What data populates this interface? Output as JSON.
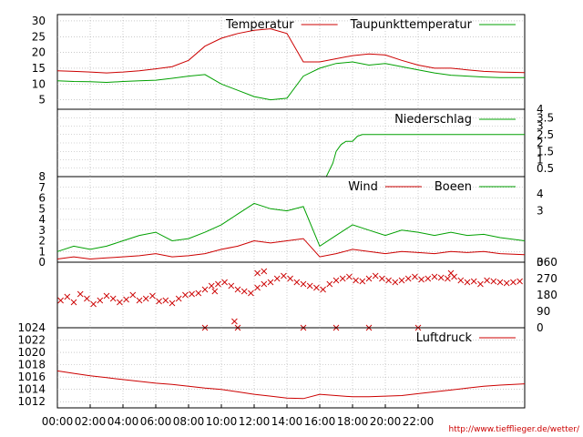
{
  "footer": {
    "url": "http://www.tiefflieger.de/wetter/"
  },
  "time_axis": {
    "ticks": [
      {
        "hour": 0,
        "label": "00:00"
      },
      {
        "hour": 2,
        "label": "02:00"
      },
      {
        "hour": 4,
        "label": "04:00"
      },
      {
        "hour": 6,
        "label": "06:00"
      },
      {
        "hour": 8,
        "label": "08:00"
      },
      {
        "hour": 10,
        "label": "10:00"
      },
      {
        "hour": 12,
        "label": "12:00"
      },
      {
        "hour": 14,
        "label": "14:00"
      },
      {
        "hour": 16,
        "label": "16:00"
      },
      {
        "hour": 18,
        "label": "18:00"
      },
      {
        "hour": 20,
        "label": "20:00"
      },
      {
        "hour": 22,
        "label": "22:00"
      }
    ],
    "range_hours": [
      0,
      28.5
    ]
  },
  "colors": {
    "red": "#cc0000",
    "green": "#00a000",
    "grid": "#aaaaaa"
  },
  "chart_data": [
    {
      "type": "line",
      "xlim": [
        0,
        28.5
      ],
      "ylim": [
        2,
        32
      ],
      "yticks": [
        5,
        10,
        15,
        20,
        25,
        30
      ],
      "legend": [
        {
          "name": "Temperatur",
          "color": "#cc0000"
        },
        {
          "name": "Taupunkttemperatur",
          "color": "#00a000"
        }
      ],
      "series": [
        {
          "name": "Temperatur",
          "color": "#cc0000",
          "x": [
            0,
            1,
            2,
            3,
            4,
            5,
            6,
            7,
            8,
            9,
            10,
            11,
            12,
            13,
            14,
            15,
            16,
            17,
            18,
            19,
            20,
            21,
            22,
            23,
            24,
            25,
            26,
            27,
            28.5
          ],
          "y": [
            14.2,
            14.0,
            13.8,
            13.5,
            13.8,
            14.2,
            14.8,
            15.5,
            17.5,
            22.0,
            24.5,
            26.0,
            27.0,
            27.5,
            26.0,
            17.0,
            17.0,
            18.0,
            19.0,
            19.5,
            19.2,
            17.5,
            16.0,
            15.0,
            15.0,
            14.5,
            14.0,
            13.8,
            13.6
          ]
        },
        {
          "name": "Taupunkttemperatur",
          "color": "#00a000",
          "x": [
            0,
            1,
            2,
            3,
            4,
            5,
            6,
            7,
            8,
            9,
            10,
            11,
            12,
            13,
            14,
            15,
            16,
            17,
            18,
            19,
            20,
            21,
            22,
            23,
            24,
            25,
            26,
            27,
            28.5
          ],
          "y": [
            11.0,
            10.8,
            10.7,
            10.5,
            10.8,
            11.0,
            11.2,
            11.8,
            12.5,
            13.0,
            10.0,
            8.0,
            6.0,
            5.0,
            5.5,
            12.5,
            15.0,
            16.5,
            17.0,
            16.0,
            16.5,
            15.5,
            14.5,
            13.5,
            12.8,
            12.5,
            12.2,
            12.0,
            12.0
          ]
        }
      ]
    },
    {
      "type": "line",
      "xlim": [
        0,
        28.5
      ],
      "ylim": [
        0,
        4
      ],
      "yticks": [
        0.5,
        1,
        1.5,
        2,
        2.5,
        3,
        3.5,
        4
      ],
      "ytick_labels": [
        "0.5",
        "1",
        "1.5",
        "2",
        "2.5",
        "3",
        "3.5",
        "4"
      ],
      "legend": [
        {
          "name": "Niederschlag",
          "color": "#00a000"
        }
      ],
      "series": [
        {
          "name": "Niederschlag",
          "color": "#00a000",
          "x": [
            0,
            16.4,
            16.8,
            17.0,
            17.3,
            17.6,
            18.0,
            18.3,
            18.6,
            19.5,
            20.0,
            28.5
          ],
          "y": [
            0,
            0,
            0.8,
            1.5,
            1.9,
            2.1,
            2.1,
            2.4,
            2.5,
            2.5,
            2.5,
            2.5
          ]
        }
      ]
    },
    {
      "type": "line",
      "xlim": [
        0,
        28.5
      ],
      "ylim": [
        0,
        8
      ],
      "yticks": [
        0,
        1,
        2,
        3,
        4,
        5,
        6,
        7,
        8
      ],
      "right_ylim": [
        0,
        5
      ],
      "right_yticks": [
        0,
        3,
        4
      ],
      "legend": [
        {
          "name": "Wind",
          "color": "#cc0000"
        },
        {
          "name": "Boeen",
          "color": "#00a000"
        }
      ],
      "series": [
        {
          "name": "Wind",
          "color": "#cc0000",
          "x": [
            0,
            1,
            2,
            3,
            4,
            5,
            6,
            7,
            8,
            9,
            10,
            11,
            12,
            13,
            14,
            15,
            16,
            17,
            18,
            19,
            20,
            21,
            22,
            23,
            24,
            25,
            26,
            27,
            28.5
          ],
          "y": [
            0.3,
            0.5,
            0.3,
            0.4,
            0.5,
            0.6,
            0.8,
            0.5,
            0.6,
            0.8,
            1.2,
            1.5,
            2.0,
            1.8,
            2.0,
            2.2,
            0.5,
            0.8,
            1.2,
            1.0,
            0.8,
            1.0,
            0.9,
            0.8,
            1.0,
            0.9,
            1.0,
            0.8,
            0.7
          ]
        },
        {
          "name": "Boeen",
          "color": "#00a000",
          "x": [
            0,
            1,
            2,
            3,
            4,
            5,
            6,
            7,
            8,
            9,
            10,
            11,
            12,
            13,
            14,
            15,
            16,
            17,
            18,
            19,
            20,
            21,
            22,
            23,
            24,
            25,
            26,
            27,
            28.5
          ],
          "y": [
            1.0,
            1.5,
            1.2,
            1.5,
            2.0,
            2.5,
            2.8,
            2.0,
            2.2,
            2.8,
            3.5,
            4.5,
            5.5,
            5.0,
            4.8,
            5.2,
            1.5,
            2.5,
            3.5,
            3.0,
            2.5,
            3.0,
            2.8,
            2.5,
            2.8,
            2.5,
            2.6,
            2.3,
            2.0
          ]
        }
      ]
    },
    {
      "type": "scatter",
      "xlim": [
        0,
        28.5
      ],
      "ylim": [
        0,
        360
      ],
      "right_yticks": [
        0,
        90,
        180,
        270,
        360
      ],
      "series": [
        {
          "name": "",
          "color": "#cc0000",
          "x": [
            0.2,
            0.6,
            1.0,
            1.4,
            1.8,
            2.2,
            2.6,
            3.0,
            3.4,
            3.8,
            4.2,
            4.6,
            5.0,
            5.4,
            5.8,
            6.2,
            6.6,
            7.0,
            7.4,
            7.8,
            8.2,
            8.6,
            9.0,
            9.4,
            9.8,
            10.2,
            10.6,
            11.0,
            11.4,
            11.8,
            12.2,
            12.6,
            13.0,
            13.4,
            13.8,
            14.2,
            14.6,
            15.0,
            15.4,
            15.8,
            16.2,
            16.6,
            17.0,
            17.4,
            17.8,
            18.2,
            18.6,
            19.0,
            19.4,
            19.8,
            20.2,
            20.6,
            21.0,
            21.4,
            21.8,
            22.2,
            22.6,
            23.0,
            23.4,
            23.8,
            24.2,
            24.6,
            25.0,
            25.4,
            25.8,
            26.2,
            26.6,
            27.0,
            27.4,
            27.8,
            28.2,
            9.0,
            11.0,
            12.2,
            15.0,
            17.0,
            19.0,
            22.0,
            24.0,
            10.8,
            9.6,
            12.6
          ],
          "y": [
            150,
            170,
            140,
            185,
            160,
            130,
            150,
            175,
            160,
            140,
            155,
            180,
            150,
            160,
            175,
            145,
            150,
            135,
            160,
            180,
            185,
            190,
            210,
            230,
            240,
            250,
            230,
            210,
            200,
            190,
            220,
            240,
            250,
            270,
            285,
            270,
            250,
            240,
            230,
            220,
            210,
            240,
            260,
            270,
            280,
            260,
            255,
            270,
            285,
            270,
            260,
            250,
            260,
            270,
            280,
            265,
            270,
            280,
            275,
            270,
            280,
            260,
            250,
            255,
            240,
            260,
            255,
            250,
            245,
            250,
            255,
            0,
            0,
            300,
            0,
            0,
            0,
            0,
            300,
            35,
            200,
            310
          ]
        }
      ]
    },
    {
      "type": "line",
      "xlim": [
        0,
        28.5
      ],
      "ylim": [
        1011,
        1024
      ],
      "yticks": [
        1012,
        1014,
        1016,
        1018,
        1020,
        1022,
        1024
      ],
      "legend": [
        {
          "name": "Luftdruck",
          "color": "#cc0000"
        }
      ],
      "series": [
        {
          "name": "Luftdruck",
          "color": "#cc0000",
          "x": [
            0,
            1,
            2,
            3,
            4,
            5,
            6,
            7,
            8,
            9,
            10,
            11,
            12,
            13,
            14,
            15,
            16,
            17,
            18,
            19,
            20,
            21,
            22,
            23,
            24,
            25,
            26,
            27,
            28.5
          ],
          "y": [
            1017.0,
            1016.6,
            1016.2,
            1015.9,
            1015.6,
            1015.3,
            1015.0,
            1014.8,
            1014.5,
            1014.2,
            1014.0,
            1013.6,
            1013.2,
            1012.9,
            1012.6,
            1012.5,
            1013.2,
            1013.0,
            1012.8,
            1012.8,
            1012.9,
            1013.0,
            1013.3,
            1013.6,
            1013.9,
            1014.2,
            1014.5,
            1014.7,
            1014.9
          ]
        }
      ]
    }
  ]
}
